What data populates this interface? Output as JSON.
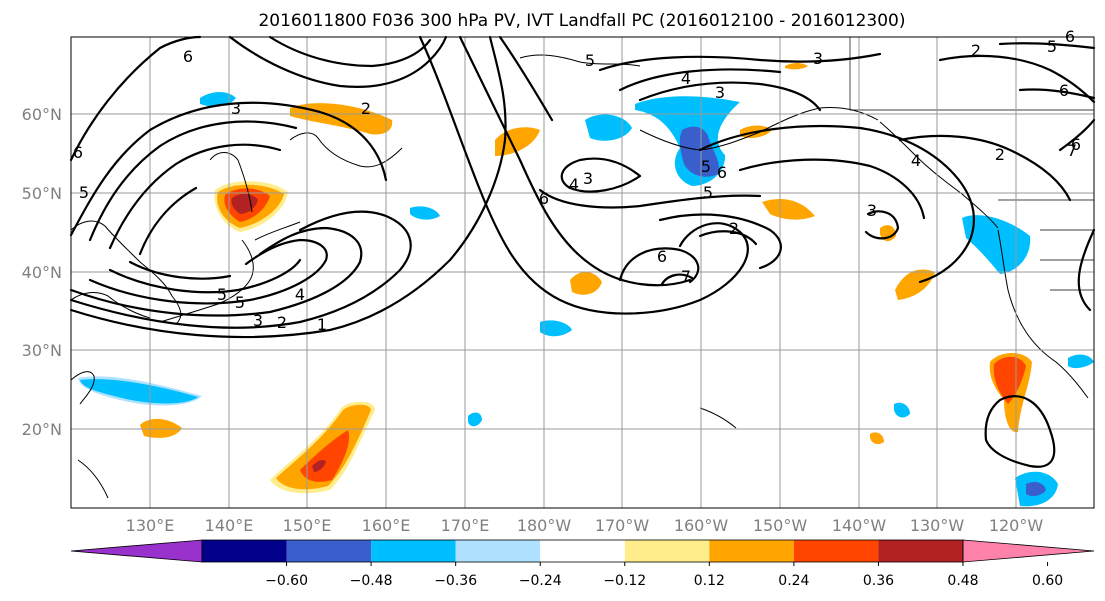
{
  "title": "2016011800 F036 300 hPa PV, IVT Landfall PC (2016012100 - 2016012300)",
  "lat_labels": [
    "60°N",
    "50°N",
    "40°N",
    "30°N",
    "20°N"
  ],
  "lon_labels": [
    "130°E",
    "140°E",
    "150°E",
    "160°E",
    "170°E",
    "180°W",
    "170°W",
    "160°W",
    "150°W",
    "140°W",
    "130°W",
    "120°W"
  ],
  "colorbar": {
    "colors": [
      "#9932cc",
      "#00008b",
      "#3a5fcd",
      "#00bfff",
      "#b0e2ff",
      "#ffffff",
      "#ffec8b",
      "#ffa500",
      "#ff4500",
      "#b22222",
      "#ff82ab"
    ],
    "tick_labels": [
      "−0.60",
      "−0.48",
      "−0.36",
      "−0.24",
      "−0.12",
      "0.12",
      "0.24",
      "0.36",
      "0.48",
      "0.60"
    ]
  },
  "contour_labels": [
    "6",
    "5",
    "6",
    "5",
    "4",
    "3",
    "2",
    "1",
    "3",
    "2",
    "3",
    "4",
    "5",
    "6",
    "7",
    "6",
    "5",
    "3",
    "4",
    "3",
    "2",
    "4",
    "2",
    "3",
    "5",
    "6",
    "5",
    "6",
    "2",
    "6",
    "7",
    "6",
    "5"
  ]
}
